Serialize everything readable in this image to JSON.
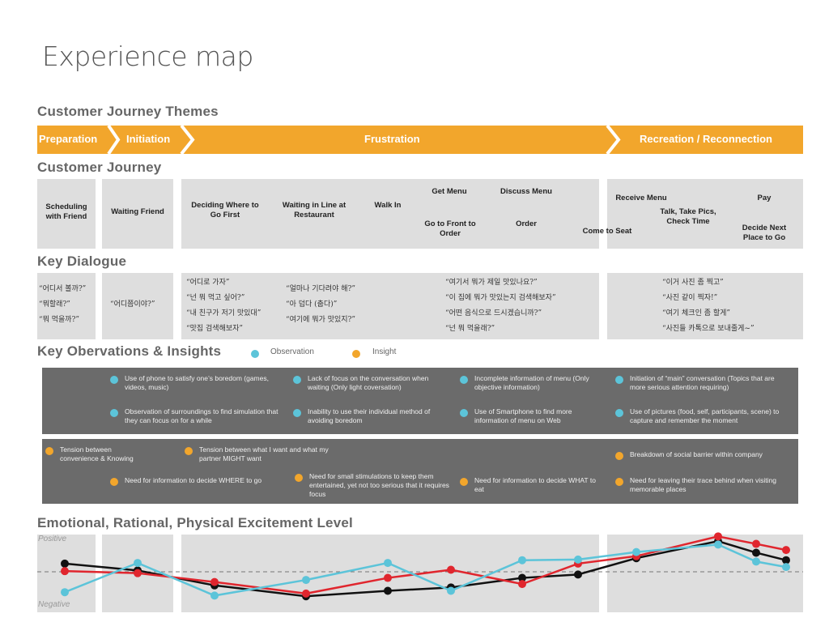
{
  "title": "Experience map",
  "sections": {
    "themes": "Customer Journey Themes",
    "journey": "Customer Journey",
    "dialogue": "Key Dialogue",
    "observations": "Key Obervations & Insights",
    "excitement": "Emotional, Rational, Physical Excitement Level"
  },
  "themes": [
    "Preparation",
    "Initiation",
    "Frustration",
    "Recreation / Reconnection"
  ],
  "journey": {
    "scheduling": "Scheduling with Friend",
    "waiting_friend": "Waiting Friend",
    "deciding": "Deciding Where to Go First",
    "waiting_line": "Waiting in Line at Restaurant",
    "walk_in": "Walk In",
    "get_menu": "Get Menu",
    "discuss_menu": "Discuss Menu",
    "go_front": "Go to Front to Order",
    "order": "Order",
    "come_to_seat": "Come to Seat",
    "receive_menu": "Receive Menu",
    "pay": "Pay",
    "talk": "Talk, Take Pics, Check Time",
    "decide_next": "Decide Next Place to Go"
  },
  "dialogue": {
    "prep": [
      "“어디서 볼까?”",
      "“뭐할래?”",
      "“뭐 먹을까?”"
    ],
    "init": [
      "“어디쯤이야?”"
    ],
    "frus_a": [
      "“어디로 가자”",
      "“넌 뭐 먹고 싶어?”",
      "“내 친구가 저기 맛있대”",
      "“맛집 검색해보자”"
    ],
    "frus_b": [
      "“얼마나 기다려야 해?”",
      "“아 덥다 (춥다)”",
      "“여기에 뭐가 맛있지?”"
    ],
    "frus_c": [
      "“여기서 뭐가 제일 맛있나요?”",
      "“이 집에 뭐가 맛있는지 검색해보자”",
      "“어떤 음식으로 드시겠습니까?”",
      "“넌 뭐 먹을래?”"
    ],
    "rec": [
      "“이거 사진 좀 찍고”",
      "“사진 같이 찍자!”",
      "“여기 체크인 좀 할게”",
      "“사진들 카톡으로 보내줄게~”"
    ]
  },
  "legend": {
    "observation": "Observation",
    "insight": "Insight"
  },
  "observations": [
    "Use of phone to satisfy one’s boredom (games, videos, music)",
    "Lack of focus on the conversation when waiting (Only light coversation)",
    "Incomplete information of menu (Only objective information)",
    "Initiation of “main” conversation (Topics that are more serious attention requiring)",
    "Observation of surroundings to find simulation that they can focus on for a while",
    "Inability to use their individual method of avoiding boredom",
    "Use of Smartphone to find more information of menu on Web",
    "Use of pictures (food, self, participants, scene) to capture and remember the moment"
  ],
  "insights": [
    "Tension between convenience & Knowing",
    "Tension between what I want and what my partner MIGHT want",
    "Breakdown of social barrier within company",
    "Need for information to decide WHERE to go",
    "Need for small stimulations to keep them entertained, yet not too serious that it requires focus",
    "Need for information to decide WHAT to eat",
    "Need for leaving their trace behind when visiting memorable places"
  ],
  "axis": {
    "positive": "Positive",
    "negative": "Negative"
  },
  "colors": {
    "orange": "#f2a62c",
    "cyan": "#5cc4d9",
    "red": "#e0262e",
    "black": "#111111",
    "band": "#6b6b6b",
    "panel": "#dedede"
  },
  "chart_data": {
    "type": "line",
    "x": [
      1,
      2,
      3,
      4,
      5,
      6,
      7,
      8,
      9,
      10,
      11,
      12,
      13
    ],
    "ylim": [
      0,
      1
    ],
    "series": [
      {
        "color": "#111111",
        "values": [
          0.62,
          0.52,
          0.3,
          0.14,
          0.22,
          0.27,
          0.41,
          0.46,
          0.7,
          0.95,
          0.78,
          0.67,
          0.64
        ]
      },
      {
        "color": "#e0262e",
        "values": [
          0.51,
          0.48,
          0.35,
          0.18,
          0.41,
          0.53,
          0.32,
          0.62,
          0.73,
          1.02,
          0.91,
          0.82,
          0.79
        ]
      },
      {
        "color": "#5cc4d9",
        "values": [
          0.2,
          0.63,
          0.15,
          0.38,
          0.63,
          0.22,
          0.67,
          0.68,
          0.79,
          0.9,
          0.65,
          0.57,
          0.56
        ]
      }
    ]
  }
}
